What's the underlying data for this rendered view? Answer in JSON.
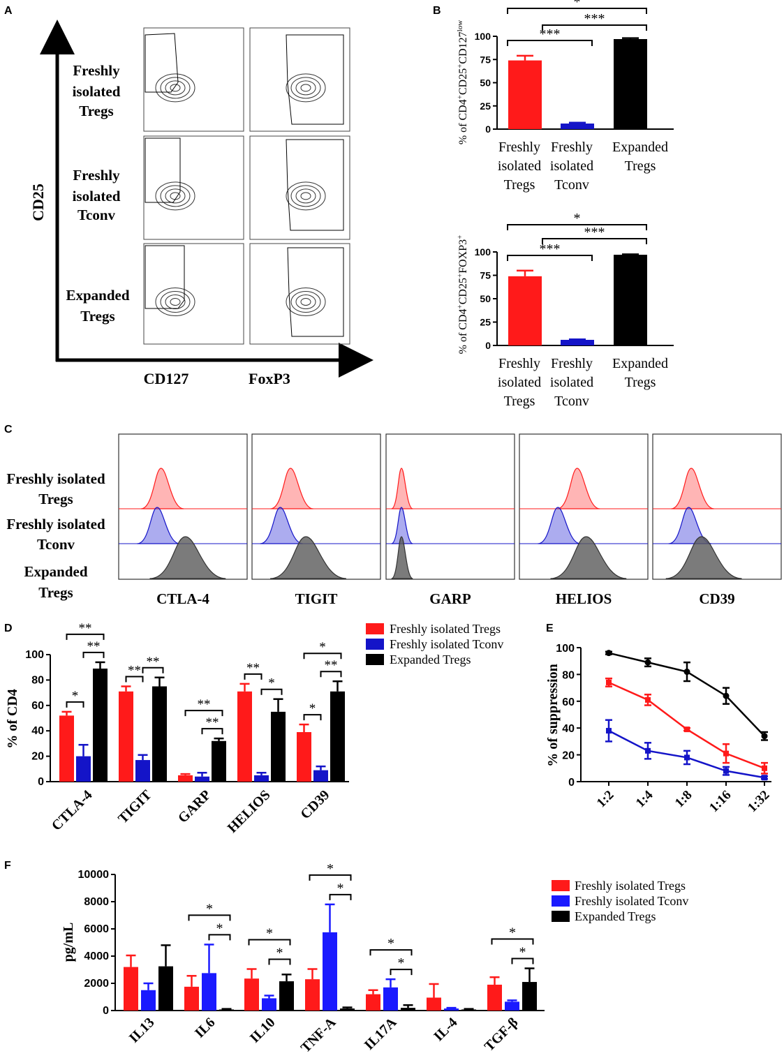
{
  "panels": {
    "A": "A",
    "B": "B",
    "C": "C",
    "D": "D",
    "E": "E",
    "F": "F"
  },
  "colors": {
    "tregs": "#ff1a1a",
    "tconv_dark": "#1414c8",
    "tconv_f": "#1a1aff",
    "expanded": "#000000"
  },
  "panel_a": {
    "y_axis": "CD25",
    "x_labels": [
      "CD127",
      "FoxP3"
    ],
    "row_labels": [
      [
        "Freshly",
        "isolated",
        "Tregs"
      ],
      [
        "Freshly",
        "isolated",
        "Tconv"
      ],
      [
        "Expanded",
        "Tregs"
      ]
    ]
  },
  "panel_c": {
    "markers": [
      "CTLA-4",
      "TIGIT",
      "GARP",
      "HELIOS",
      "CD39"
    ],
    "row_labels": [
      [
        "Freshly isolated",
        "Tregs"
      ],
      [
        "Freshly isolated",
        "Tconv"
      ],
      [
        "Expanded",
        "Tregs"
      ]
    ]
  },
  "chart_data": [
    {
      "id": "B-top",
      "type": "bar",
      "ylabel": "% of CD4+CD25+CD127low",
      "categories": [
        [
          "Freshly",
          "isolated",
          "Tregs"
        ],
        [
          "Freshly",
          "isolated",
          "Tconv"
        ],
        [
          "Expanded",
          "Tregs"
        ]
      ],
      "values": [
        74,
        6,
        97
      ],
      "errors": [
        5,
        1,
        1
      ],
      "ylim": [
        0,
        100
      ],
      "yticks": [
        0,
        25,
        50,
        75,
        100
      ],
      "significance": [
        "*",
        "***",
        "***"
      ]
    },
    {
      "id": "B-bottom",
      "type": "bar",
      "ylabel": "% of CD4+CD25+FOXP3+",
      "categories": [
        [
          "Freshly",
          "isolated",
          "Tregs"
        ],
        [
          "Freshly",
          "isolated",
          "Tconv"
        ],
        [
          "Expanded",
          "Tregs"
        ]
      ],
      "values": [
        74,
        6,
        97
      ],
      "errors": [
        6,
        0.5,
        0.5
      ],
      "ylim": [
        0,
        100
      ],
      "yticks": [
        0,
        25,
        50,
        75,
        100
      ],
      "significance": [
        "*",
        "***",
        "***"
      ]
    },
    {
      "id": "D",
      "type": "bar",
      "ylabel": "% of CD4",
      "categories": [
        "CTLA-4",
        "TIGIT",
        "GARP",
        "HELIOS",
        "CD39"
      ],
      "series": [
        {
          "name": "Freshly isolated Tregs",
          "values": [
            52,
            71,
            5,
            71,
            39
          ],
          "errors": [
            3,
            4,
            1,
            6,
            6
          ]
        },
        {
          "name": "Freshly isolated Tconv",
          "values": [
            20,
            17,
            4,
            5,
            9
          ],
          "errors": [
            9,
            4,
            3,
            2,
            3
          ]
        },
        {
          "name": "Expanded Tregs",
          "values": [
            89,
            75,
            32,
            55,
            71
          ],
          "errors": [
            5,
            7,
            2,
            10,
            8
          ]
        }
      ],
      "ylim": [
        0,
        100
      ],
      "yticks": [
        0,
        20,
        40,
        60,
        80,
        100
      ],
      "significance": [
        {
          "top": "**",
          "inner": "*",
          "right": "**"
        },
        {
          "top": "",
          "inner": "**",
          "right": "**"
        },
        {
          "top": "**",
          "inner": "",
          "right": "**"
        },
        {
          "top": "",
          "inner": "**",
          "right": "*"
        },
        {
          "top": "*",
          "inner": "*",
          "right": "**"
        }
      ]
    },
    {
      "id": "E",
      "type": "line",
      "ylabel": "% of suppression",
      "x": [
        "1:2",
        "1:4",
        "1:8",
        "1:16",
        "1:32"
      ],
      "series": [
        {
          "name": "Expanded Tregs",
          "values": [
            96,
            89,
            82,
            64,
            34
          ],
          "errors": [
            1,
            3,
            7,
            6,
            3
          ]
        },
        {
          "name": "Freshly isolated Tregs",
          "values": [
            74,
            61,
            39,
            21,
            10
          ],
          "errors": [
            3,
            4,
            1,
            7,
            4
          ]
        },
        {
          "name": "Freshly isolated Tconv",
          "values": [
            38,
            23,
            18,
            8,
            3
          ],
          "errors": [
            8,
            6,
            5,
            3,
            1
          ]
        }
      ],
      "ylim": [
        0,
        100
      ],
      "yticks": [
        0,
        20,
        40,
        60,
        80,
        100
      ]
    },
    {
      "id": "F",
      "type": "bar",
      "ylabel": "pg/mL",
      "categories": [
        "IL13",
        "IL6",
        "IL10",
        "TNF-A",
        "IL17A",
        "IL-4",
        "TGF-β"
      ],
      "series": [
        {
          "name": "Freshly isolated Tregs",
          "values": [
            3200,
            1750,
            2350,
            2300,
            1200,
            950,
            1900
          ],
          "errors": [
            850,
            800,
            700,
            750,
            300,
            1000,
            550
          ]
        },
        {
          "name": "Freshly isolated Tconv",
          "values": [
            1500,
            2750,
            900,
            5750,
            1700,
            150,
            650
          ],
          "errors": [
            500,
            2100,
            200,
            2050,
            600,
            50,
            100
          ]
        },
        {
          "name": "Expanded Tregs",
          "values": [
            3250,
            80,
            2150,
            150,
            200,
            80,
            2100
          ],
          "errors": [
            1550,
            40,
            500,
            80,
            200,
            40,
            1000
          ]
        }
      ],
      "ylim": [
        0,
        10000
      ],
      "yticks": [
        0,
        2000,
        4000,
        6000,
        8000,
        10000
      ],
      "significance": [
        {
          "inner": "",
          "top": ""
        },
        {
          "inner": "*",
          "top": "*"
        },
        {
          "inner": "*",
          "top": "*"
        },
        {
          "inner": "*",
          "top": "*"
        },
        {
          "inner": "*",
          "top": "*"
        },
        {
          "inner": "",
          "top": ""
        },
        {
          "inner": "*",
          "top": "*"
        }
      ]
    }
  ]
}
